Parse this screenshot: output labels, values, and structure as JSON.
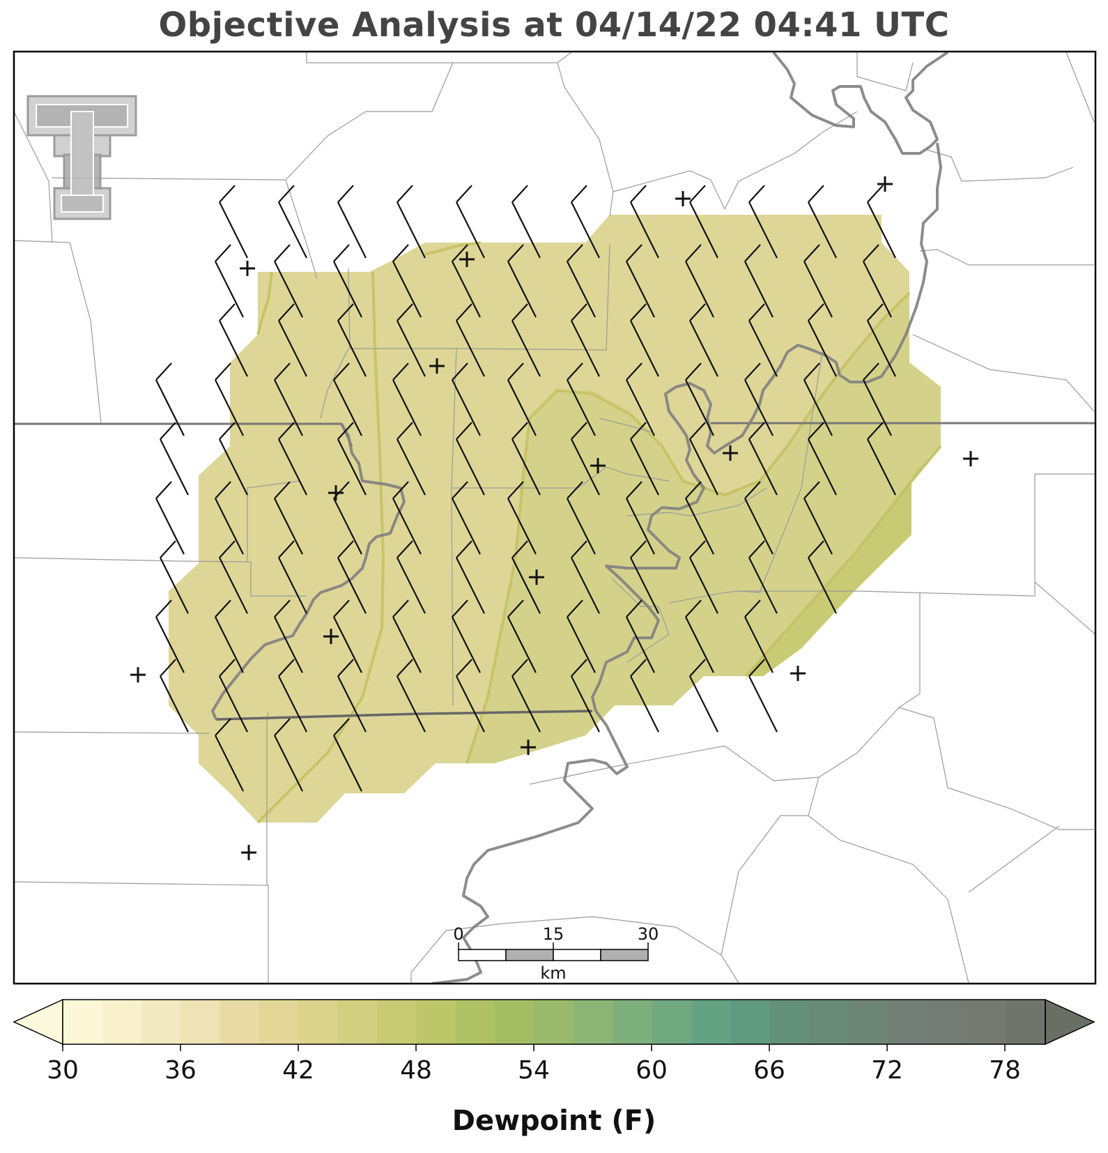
{
  "title": "Objective Analysis at 04/14/22 04:41 UTC",
  "colorbar": {
    "label": "Dewpoint (F)",
    "tick_labels": [
      "30",
      "36",
      "42",
      "48",
      "54",
      "60",
      "66",
      "72",
      "78"
    ],
    "min": 30,
    "max": 80,
    "step": 2,
    "colors": [
      "#fcf7d6",
      "#f8f1cc",
      "#f3eac2",
      "#eee3b5",
      "#e8dca4",
      "#e2d796",
      "#dcd38b",
      "#d2cf80",
      "#c8cb73",
      "#bcc767",
      "#afc263",
      "#a3bd62",
      "#99ba6a",
      "#8bb575",
      "#7daf7c",
      "#70a880",
      "#63a283",
      "#5f9a80",
      "#62907a",
      "#688a78",
      "#6e8678",
      "#717f76",
      "#737b74",
      "#757871",
      "#6f736c"
    ]
  },
  "scale_bar": {
    "labels": [
      "0",
      "15",
      "30"
    ],
    "unit": "km"
  },
  "colors": {
    "title": "#444444",
    "barb": "#111111",
    "station": "#111111",
    "river": "#808080",
    "county": "#999999",
    "fill_low": "#ded696",
    "fill_mid": "#d4d28a",
    "fill_high": "#c8cb74",
    "contour": "#c4c263"
  },
  "logo": {
    "icon": "texas-tech-double-t-logo"
  },
  "map": {
    "station_marker_icon": "plus-icon",
    "station_count": 17,
    "wind_barb_icon": "wind-barb-icon"
  }
}
